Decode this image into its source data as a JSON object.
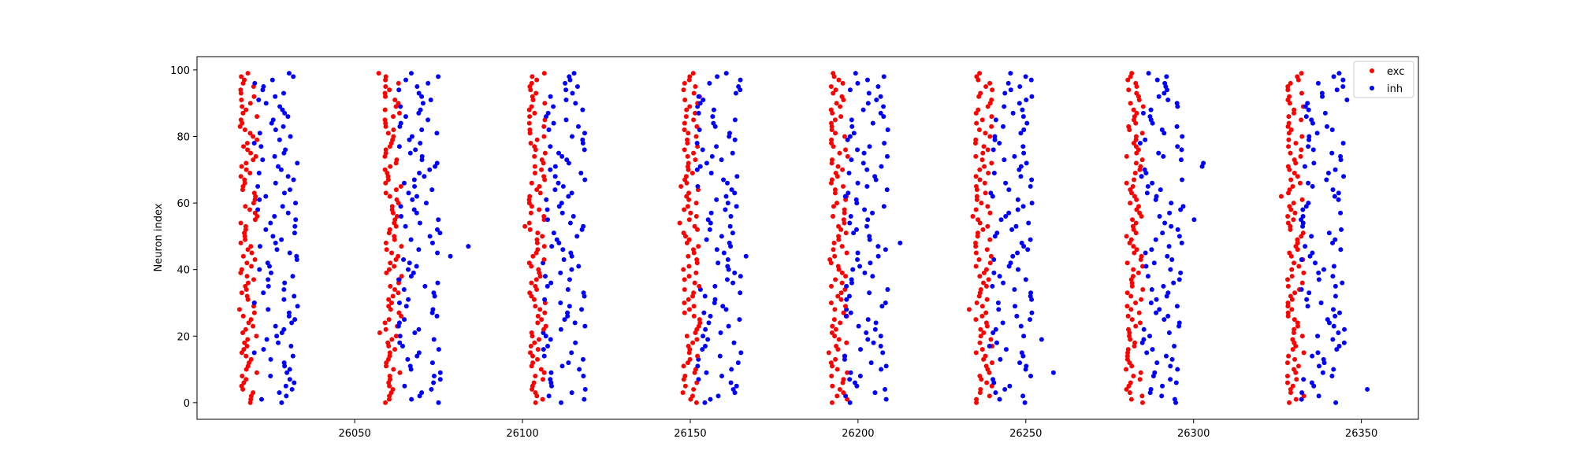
{
  "chart_data": {
    "type": "scatter",
    "title": "",
    "xlabel": "",
    "ylabel": "Neuron index",
    "xlim": [
      26003,
      26367
    ],
    "ylim": [
      -5,
      104
    ],
    "x_ticks": [
      26050,
      26100,
      26150,
      26200,
      26250,
      26300,
      26350
    ],
    "y_ticks": [
      0,
      20,
      40,
      60,
      80,
      100
    ],
    "grid": false,
    "legend_position": "top-right",
    "burst_starts": [
      26016,
      26059,
      26102,
      26148,
      26192,
      26235,
      26280,
      26328
    ],
    "neuron_count": 100,
    "series": [
      {
        "name": "exc",
        "color": "#ff0000",
        "description": "excitatory spikes, ~0-5 ms after burst start"
      },
      {
        "name": "inh",
        "color": "#0000ff",
        "description": "inhibitory spikes, ~4-18 ms after burst start"
      }
    ]
  }
}
